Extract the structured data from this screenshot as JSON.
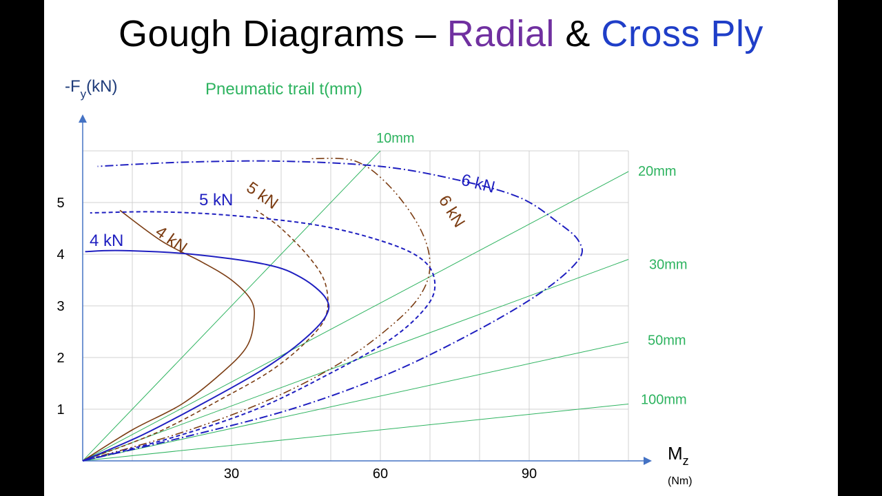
{
  "title": {
    "part1": "Gough Diagrams – ",
    "part2": "Radial",
    "part3": " & ",
    "part4": "Cross Ply"
  },
  "colors": {
    "radial": "#7b3c12",
    "cross": "#1f1fc0",
    "trail": "#2db35f",
    "grid": "#d0d0d0",
    "axis": "#4472c4",
    "title_radial": "#7030a0",
    "title_cross": "#1f3ec8"
  },
  "chart_data": {
    "type": "line",
    "title": "Gough Diagrams – Radial & Cross Ply",
    "xlabel": "M",
    "xlabel_sub": "z",
    "xunit": "(Nm)",
    "ylabel": "-F",
    "ylabel_sub": "y",
    "yunit": "(kN)",
    "trail_label": "Pneumatic trail t(mm)",
    "xlim": [
      0,
      110
    ],
    "ylim": [
      0,
      6
    ],
    "grid": true,
    "xticks": [
      30,
      60,
      90
    ],
    "yticks": [
      1,
      2,
      3,
      4,
      5
    ],
    "trail_lines": [
      {
        "label": "10mm",
        "y_at_x60": 6.0
      },
      {
        "label": "20mm",
        "y_at_x110": 5.6
      },
      {
        "label": "30mm",
        "y_at_x110": 3.9
      },
      {
        "label": "50mm",
        "y_at_x110": 2.3
      },
      {
        "label": "100mm",
        "y_at_x110": 1.1
      }
    ],
    "series": [
      {
        "name": "4 kN",
        "tire": "radial",
        "style": "solid",
        "points": [
          [
            0,
            0
          ],
          [
            10,
            0.6
          ],
          [
            20,
            1.1
          ],
          [
            28,
            1.7
          ],
          [
            33,
            2.2
          ],
          [
            34.5,
            2.7
          ],
          [
            34,
            3.1
          ],
          [
            30,
            3.5
          ],
          [
            24,
            3.85
          ],
          [
            16,
            4.25
          ],
          [
            7.5,
            4.85
          ]
        ]
      },
      {
        "name": "5 kN",
        "tire": "radial",
        "style": "dash",
        "points": [
          [
            0,
            0
          ],
          [
            15,
            0.55
          ],
          [
            28,
            1.2
          ],
          [
            38,
            1.75
          ],
          [
            45,
            2.3
          ],
          [
            49,
            2.8
          ],
          [
            49,
            3.4
          ],
          [
            46,
            3.9
          ],
          [
            40,
            4.5
          ],
          [
            35,
            4.85
          ]
        ]
      },
      {
        "name": "6 kN",
        "tire": "radial",
        "style": "dashdotdot",
        "points": [
          [
            0,
            0
          ],
          [
            20,
            0.55
          ],
          [
            38,
            1.2
          ],
          [
            52,
            1.9
          ],
          [
            62,
            2.6
          ],
          [
            68,
            3.2
          ],
          [
            70,
            3.8
          ],
          [
            68,
            4.5
          ],
          [
            62,
            5.3
          ],
          [
            55,
            5.8
          ],
          [
            46,
            5.85
          ]
        ]
      },
      {
        "name": "4 kN",
        "tire": "cross",
        "style": "solid",
        "points": [
          [
            0,
            0
          ],
          [
            12,
            0.5
          ],
          [
            24,
            1.1
          ],
          [
            36,
            1.75
          ],
          [
            44,
            2.3
          ],
          [
            49,
            2.8
          ],
          [
            49,
            3.15
          ],
          [
            44,
            3.55
          ],
          [
            37,
            3.8
          ],
          [
            22,
            4.0
          ],
          [
            8,
            4.07
          ],
          [
            0.5,
            4.05
          ]
        ]
      },
      {
        "name": "5 kN",
        "tire": "cross",
        "style": "dash",
        "points": [
          [
            0,
            0
          ],
          [
            18,
            0.45
          ],
          [
            35,
            1.0
          ],
          [
            50,
            1.7
          ],
          [
            62,
            2.35
          ],
          [
            69,
            2.95
          ],
          [
            71,
            3.4
          ],
          [
            69,
            3.85
          ],
          [
            62,
            4.2
          ],
          [
            48,
            4.55
          ],
          [
            30,
            4.75
          ],
          [
            15,
            4.82
          ],
          [
            1.5,
            4.8
          ]
        ]
      },
      {
        "name": "6 kN",
        "tire": "cross",
        "style": "dashdot",
        "points": [
          [
            0,
            0
          ],
          [
            20,
            0.45
          ],
          [
            42,
            1.0
          ],
          [
            62,
            1.7
          ],
          [
            80,
            2.55
          ],
          [
            93,
            3.3
          ],
          [
            100,
            3.9
          ],
          [
            100,
            4.25
          ],
          [
            96,
            4.6
          ],
          [
            88,
            5.1
          ],
          [
            75,
            5.45
          ],
          [
            60,
            5.7
          ],
          [
            40,
            5.8
          ],
          [
            20,
            5.78
          ],
          [
            3,
            5.7
          ]
        ]
      }
    ],
    "annotations": [
      {
        "text": "4 kN",
        "tire": "cross"
      },
      {
        "text": "5 kN",
        "tire": "cross"
      },
      {
        "text": "6 kN",
        "tire": "cross"
      },
      {
        "text": "4 kN",
        "tire": "radial"
      },
      {
        "text": "5 kN",
        "tire": "radial"
      },
      {
        "text": "6 kN",
        "tire": "radial"
      }
    ]
  }
}
